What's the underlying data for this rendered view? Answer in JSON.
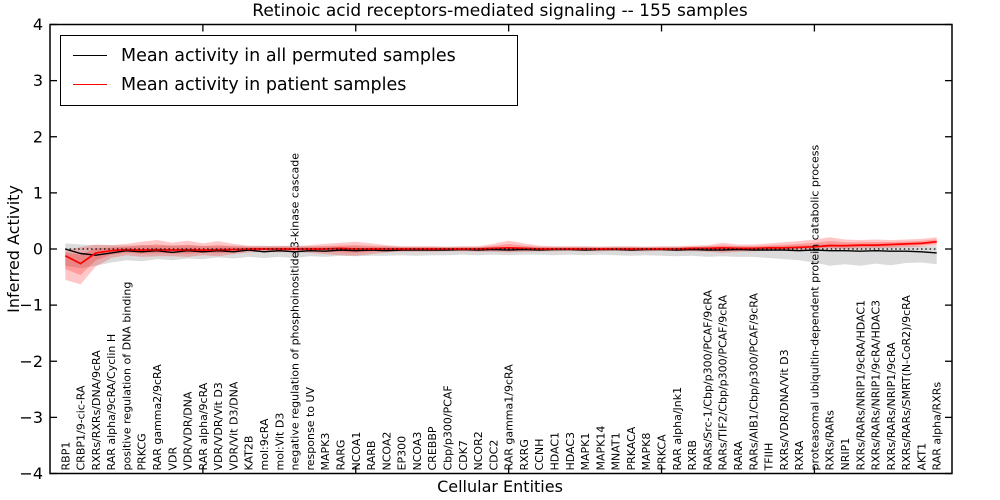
{
  "title": "Retinoic acid receptors-mediated signaling -- 155 samples",
  "axes": {
    "xlabel": "Cellular Entities",
    "ylabel": "Inferred Activity",
    "ylim": [
      -4,
      4
    ],
    "yticks": [
      -4,
      -3,
      -2,
      -1,
      0,
      1,
      2,
      3,
      4
    ],
    "xticks_major_positions": [
      10,
      20,
      30,
      40,
      50
    ]
  },
  "legend": {
    "items": [
      {
        "label": "Mean activity in all permuted samples",
        "color": "#000000"
      },
      {
        "label": "Mean activity in patient samples",
        "color": "#ff0000"
      }
    ],
    "position": "upper left"
  },
  "chart_data": {
    "type": "line",
    "title": "Retinoic acid receptors-mediated signaling -- 155 samples",
    "xlabel": "Cellular Entities",
    "ylabel": "Inferred Activity",
    "ylim": [
      -4,
      4
    ],
    "n_samples": 155,
    "grid": false,
    "zero_reference_line": true,
    "categories": [
      "RBP1",
      "CRBP1/9-cic-RA",
      "RXRs/RXRs/DNA/9cRA",
      "RAR alpha/9cRA/Cyclin H",
      "positive regulation of DNA binding",
      "PRKCG",
      "RAR gamma2/9cRA",
      "VDR",
      "VDR/VDR/DNA",
      "RAR alpha/9cRA",
      "VDR/VDR/Vit D3",
      "VDR/Vit D3/DNA",
      "KAT2B",
      "mol:9cRA",
      "mol:Vit D3",
      "negative regulation of phosphoinositide 3-kinase cascade",
      "response to UV",
      "MAPK3",
      "RARG",
      "NCOA1",
      "RARB",
      "NCOA2",
      "EP300",
      "NCOA3",
      "CREBBP",
      "Cbp/p300/PCAF",
      "CDK7",
      "NCOR2",
      "CDC2",
      "RAR gamma1/9cRA",
      "RXRG",
      "CCNH",
      "HDAC1",
      "HDAC3",
      "MAPK1",
      "MAPK14",
      "MNAT1",
      "PRKACA",
      "MAPK8",
      "PRKCA",
      "RAR alpha/Jnk1",
      "RXRB",
      "RARs/Src-1/Cbp/p300/PCAF/9cRA",
      "RARs/TIF2/Cbp/p300/PCAF/9cRA",
      "RARA",
      "RARs/AIB1/Cbp/p300/PCAF/9cRA",
      "TFIIH",
      "RXRs/VDR/DNA/Vit D3",
      "RXRA",
      "proteasomal ubiquitin-dependent protein catabolic process",
      "RXRs/RARs",
      "NRIP1",
      "RXRs/RARs/NRIP1/9cRA/HDAC1",
      "RXRs/RARs/NRIP1/9cRA/HDAC3",
      "RXRs/RARs/NRIP1/9cRA",
      "RXRs/RARs/SMRT(N-CoR2)/9cRA",
      "AKT1",
      "RAR alpha/RXRs"
    ],
    "series": [
      {
        "name": "Mean activity in all permuted samples",
        "color": "#000000",
        "band_color": "rgba(125,125,125,0.28)",
        "values": [
          0.0,
          -0.08,
          -0.11,
          -0.07,
          -0.03,
          -0.05,
          -0.03,
          -0.06,
          -0.03,
          -0.05,
          -0.03,
          -0.05,
          -0.02,
          -0.05,
          -0.03,
          -0.05,
          -0.03,
          -0.04,
          -0.02,
          -0.03,
          -0.02,
          -0.03,
          -0.02,
          -0.02,
          -0.02,
          -0.02,
          -0.01,
          -0.02,
          -0.01,
          -0.02,
          -0.01,
          -0.02,
          -0.01,
          -0.01,
          -0.02,
          -0.01,
          -0.01,
          -0.02,
          -0.01,
          -0.01,
          -0.02,
          -0.01,
          -0.02,
          -0.02,
          -0.01,
          -0.02,
          -0.02,
          -0.02,
          -0.03,
          -0.02,
          -0.03,
          -0.03,
          -0.04,
          -0.03,
          -0.04,
          -0.04,
          -0.05,
          -0.07
        ],
        "band_upper": [
          0.1,
          0.08,
          0.07,
          0.07,
          0.06,
          0.07,
          0.06,
          0.07,
          0.06,
          0.06,
          0.05,
          0.06,
          0.05,
          0.06,
          0.05,
          0.06,
          0.05,
          0.05,
          0.04,
          0.05,
          0.04,
          0.05,
          0.04,
          0.04,
          0.04,
          0.04,
          0.04,
          0.04,
          0.04,
          0.04,
          0.04,
          0.04,
          0.04,
          0.04,
          0.04,
          0.04,
          0.04,
          0.04,
          0.04,
          0.04,
          0.04,
          0.04,
          0.05,
          0.04,
          0.05,
          0.04,
          0.05,
          0.05,
          0.06,
          0.07,
          0.09,
          0.06,
          0.06,
          0.07,
          0.06,
          0.06,
          0.05,
          0.05
        ],
        "band_lower": [
          -0.3,
          -0.34,
          -0.3,
          -0.24,
          -0.2,
          -0.22,
          -0.18,
          -0.2,
          -0.17,
          -0.18,
          -0.15,
          -0.17,
          -0.14,
          -0.16,
          -0.14,
          -0.16,
          -0.13,
          -0.14,
          -0.12,
          -0.13,
          -0.12,
          -0.12,
          -0.11,
          -0.12,
          -0.11,
          -0.11,
          -0.1,
          -0.11,
          -0.1,
          -0.11,
          -0.1,
          -0.1,
          -0.11,
          -0.1,
          -0.11,
          -0.1,
          -0.11,
          -0.12,
          -0.11,
          -0.12,
          -0.13,
          -0.12,
          -0.14,
          -0.13,
          -0.14,
          -0.14,
          -0.16,
          -0.18,
          -0.2,
          -0.24,
          -0.3,
          -0.27,
          -0.3,
          -0.26,
          -0.29,
          -0.25,
          -0.24,
          -0.27
        ]
      },
      {
        "name": "Mean activity in patient samples",
        "color": "#ff0000",
        "band_color": "rgba(255,0,0,0.22)",
        "values": [
          -0.12,
          -0.26,
          -0.07,
          -0.03,
          -0.01,
          -0.02,
          -0.01,
          -0.02,
          -0.01,
          -0.02,
          -0.01,
          -0.01,
          0.0,
          0.0,
          0.0,
          0.0,
          0.0,
          0.0,
          0.01,
          0.0,
          0.0,
          0.0,
          0.0,
          0.0,
          0.0,
          0.0,
          0.0,
          0.0,
          0.01,
          0.02,
          0.01,
          0.0,
          0.0,
          0.0,
          0.0,
          0.0,
          0.0,
          0.0,
          0.0,
          0.0,
          0.0,
          0.01,
          0.01,
          0.02,
          0.01,
          0.01,
          0.02,
          0.02,
          0.03,
          0.04,
          0.06,
          0.06,
          0.07,
          0.07,
          0.08,
          0.09,
          0.1,
          0.13
        ],
        "band_upper": [
          -0.02,
          0.03,
          0.08,
          0.07,
          0.09,
          0.13,
          0.16,
          0.11,
          0.15,
          0.1,
          0.14,
          0.09,
          0.06,
          0.05,
          0.06,
          0.05,
          0.07,
          0.09,
          0.11,
          0.13,
          0.1,
          0.07,
          0.05,
          0.05,
          0.05,
          0.04,
          0.05,
          0.05,
          0.09,
          0.15,
          0.1,
          0.06,
          0.05,
          0.05,
          0.05,
          0.04,
          0.05,
          0.05,
          0.04,
          0.05,
          0.05,
          0.06,
          0.07,
          0.11,
          0.08,
          0.08,
          0.1,
          0.12,
          0.14,
          0.17,
          0.21,
          0.17,
          0.16,
          0.17,
          0.16,
          0.17,
          0.18,
          0.21
        ],
        "band_lower": [
          -0.55,
          -0.63,
          -0.31,
          -0.16,
          -0.11,
          -0.14,
          -0.13,
          -0.13,
          -0.14,
          -0.11,
          -0.13,
          -0.09,
          -0.06,
          -0.05,
          -0.06,
          -0.05,
          -0.07,
          -0.09,
          -0.11,
          -0.12,
          -0.09,
          -0.06,
          -0.05,
          -0.05,
          -0.05,
          -0.04,
          -0.04,
          -0.05,
          -0.05,
          -0.06,
          -0.05,
          -0.04,
          -0.04,
          -0.03,
          -0.04,
          -0.04,
          -0.03,
          -0.04,
          -0.04,
          -0.03,
          -0.04,
          -0.04,
          -0.05,
          -0.07,
          -0.05,
          -0.04,
          -0.03,
          -0.02,
          -0.01,
          0.0,
          0.01,
          0.0,
          0.01,
          0.01,
          0.02,
          0.03,
          0.04,
          0.06
        ]
      }
    ]
  }
}
